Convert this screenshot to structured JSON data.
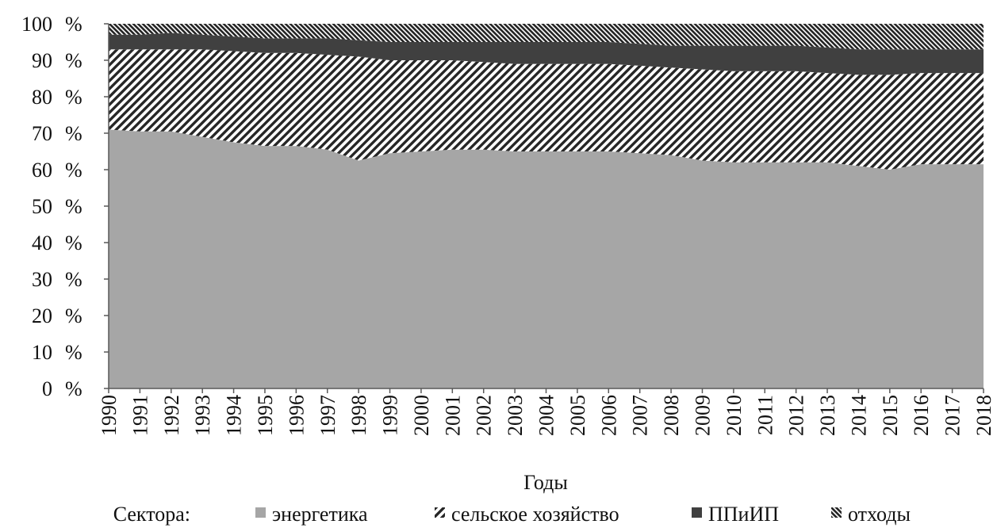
{
  "chart_data": {
    "type": "area",
    "stacked": "percent",
    "x": [
      "1990",
      "1991",
      "1992",
      "1993",
      "1994",
      "1995",
      "1996",
      "1997",
      "1998",
      "1999",
      "2000",
      "2001",
      "2002",
      "2003",
      "2004",
      "2005",
      "2006",
      "2007",
      "2008",
      "2009",
      "2010",
      "2011",
      "2012",
      "2013",
      "2014",
      "2015",
      "2016",
      "2017",
      "2018"
    ],
    "xlabel": "Годы",
    "ylabel": "",
    "ylim": [
      0,
      100
    ],
    "yticks": [
      0,
      10,
      20,
      30,
      40,
      50,
      60,
      70,
      80,
      90,
      100
    ],
    "ytick_suffix": "%",
    "grid": false,
    "legend_title": "Сектора:",
    "legend_position": "bottom",
    "series": [
      {
        "name": "энергетика",
        "fill": "solid",
        "color": "#a6a6a6",
        "values": [
          71,
          70.5,
          70.5,
          69,
          67.5,
          66.5,
          66.5,
          65.5,
          62.5,
          64.5,
          65,
          65.5,
          65.5,
          65,
          65,
          65,
          65,
          64.5,
          64,
          62.5,
          62,
          62,
          62,
          62,
          61,
          60,
          61.5,
          61.5,
          61.5
        ]
      },
      {
        "name": "сельское хозяйство",
        "fill": "diagonal-hatch",
        "color": "#262626",
        "values": [
          22,
          22.5,
          22.5,
          24,
          25,
          25.5,
          25.5,
          26,
          28.5,
          25.5,
          25,
          24.5,
          24,
          24,
          24,
          24,
          24,
          24,
          24,
          25,
          25,
          25,
          25,
          24.5,
          25,
          26,
          25,
          25,
          25
        ]
      },
      {
        "name": "ППиИП",
        "fill": "solid",
        "color": "#404040",
        "values": [
          4,
          4,
          4.5,
          4,
          4,
          4,
          4,
          4.5,
          4.5,
          5,
          5,
          5,
          5.5,
          6,
          6,
          6,
          6,
          6,
          6,
          6.5,
          7,
          7,
          7,
          7,
          7,
          7,
          6.5,
          6.5,
          6.5
        ]
      },
      {
        "name": "отходы",
        "fill": "dense-hatch",
        "color": "#262626",
        "values": [
          3,
          3,
          2.5,
          3,
          3.5,
          4,
          4,
          4,
          4.5,
          5,
          5,
          5,
          5,
          5,
          5,
          5,
          5,
          5.5,
          6,
          6,
          6,
          6,
          6,
          6.5,
          7,
          7,
          7,
          7,
          7
        ]
      }
    ]
  }
}
